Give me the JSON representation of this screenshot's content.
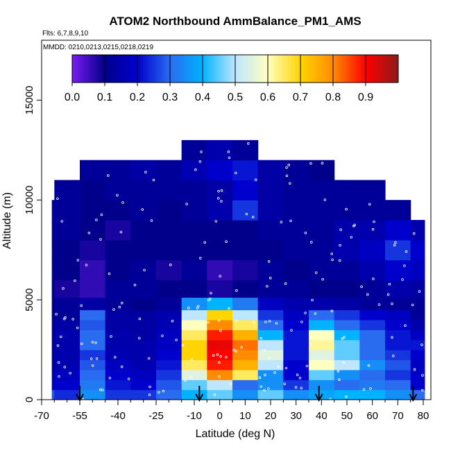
{
  "chart_data": {
    "type": "heatmap",
    "title": "ATOM2 Northbound AmmBalance_PM1_AMS",
    "notes": [
      "Flts: 6,7,8,9,10",
      "MMDD: 0210,0213,0215,0218,0219"
    ],
    "xlabel": "Latitude (deg N)",
    "ylabel": "Altitude (m)",
    "xlim": [
      -70,
      83
    ],
    "ylim": [
      0,
      18000
    ],
    "x_ticks": [
      -70,
      -55,
      -40,
      -25,
      -10,
      0,
      10,
      20,
      30,
      40,
      50,
      60,
      70,
      80
    ],
    "x_ticks_minor": [
      -65,
      -60,
      -50,
      -45,
      -35,
      -30,
      -20,
      -15,
      -5,
      5,
      15,
      25,
      35,
      45,
      55,
      65,
      75
    ],
    "y_ticks": [
      0,
      5000,
      10000,
      15000
    ],
    "colorbar": {
      "range": [
        0.0,
        1.0
      ],
      "ticks": [
        "0.0",
        "0.1",
        "0.2",
        "0.3",
        "0.4",
        "0.5",
        "0.6",
        "0.7",
        "0.8",
        "0.9"
      ],
      "colors": [
        "#7a1bf0",
        "#00008b",
        "#0000cd",
        "#2a6cf0",
        "#00b2ff",
        "#bfe6ff",
        "#ffffc0",
        "#ffd400",
        "#ff8c00",
        "#ff0000",
        "#8b1a1a"
      ]
    },
    "sounding_latitudes": [
      -55,
      -8,
      39,
      76
    ],
    "lat_columns": [
      -70,
      -60,
      -50,
      -40,
      -30,
      -20,
      -10,
      0,
      10,
      20,
      30,
      40,
      50,
      60,
      70,
      80
    ],
    "alt_levels_m": [
      250,
      750,
      1250,
      1750,
      2250,
      2750,
      3250,
      3750,
      4250,
      4750,
      5500,
      6500,
      7500,
      8500,
      9500,
      10500,
      11500,
      12500
    ],
    "grid_values": [
      [
        0.28,
        0.24,
        0.35,
        0.25,
        0.25,
        0.3,
        0.4,
        0.45,
        0.35,
        0.45,
        0.35,
        0.38,
        0.4,
        0.4,
        0.35,
        0.3
      ],
      [
        0.18,
        0.2,
        0.32,
        0.22,
        0.2,
        0.28,
        0.45,
        0.5,
        0.3,
        0.35,
        0.25,
        0.35,
        0.3,
        0.32,
        0.3,
        0.2
      ],
      [
        0.15,
        0.18,
        0.3,
        0.2,
        0.18,
        0.25,
        0.55,
        0.8,
        0.65,
        0.35,
        0.2,
        0.45,
        0.35,
        0.3,
        0.25,
        0.2
      ],
      [
        0.12,
        0.16,
        0.28,
        0.18,
        0.16,
        0.22,
        0.65,
        0.88,
        0.75,
        0.5,
        0.2,
        0.6,
        0.5,
        0.35,
        0.28,
        0.18
      ],
      [
        0.12,
        0.15,
        0.25,
        0.16,
        0.15,
        0.2,
        0.7,
        0.9,
        0.8,
        0.55,
        0.22,
        0.55,
        0.45,
        0.3,
        0.25,
        0.2
      ],
      [
        0.12,
        0.15,
        0.3,
        0.15,
        0.15,
        0.18,
        0.7,
        0.92,
        0.82,
        0.5,
        0.22,
        0.62,
        0.45,
        0.3,
        0.22,
        0.22
      ],
      [
        0.12,
        0.15,
        0.3,
        0.15,
        0.14,
        0.18,
        0.65,
        0.88,
        0.75,
        0.4,
        0.22,
        0.6,
        0.4,
        0.3,
        0.22,
        0.18
      ],
      [
        0.12,
        0.14,
        0.28,
        0.14,
        0.14,
        0.16,
        0.6,
        0.8,
        0.65,
        0.3,
        0.2,
        0.4,
        0.3,
        0.25,
        0.2,
        0.15
      ],
      [
        0.1,
        0.12,
        0.3,
        0.14,
        0.13,
        0.15,
        0.5,
        0.7,
        0.5,
        0.25,
        0.18,
        0.3,
        0.25,
        0.2,
        0.18,
        0.12
      ],
      [
        0.1,
        0.12,
        0.14,
        0.12,
        0.1,
        0.12,
        0.35,
        0.4,
        0.32,
        0.18,
        0.15,
        0.15,
        0.14,
        0.12,
        0.12,
        0.12
      ],
      [
        0.1,
        0.08,
        0.06,
        0.12,
        0.12,
        0.1,
        0.1,
        0.08,
        0.1,
        0.12,
        0.12,
        0.1,
        0.1,
        0.12,
        0.15,
        0.14
      ],
      [
        0.12,
        0.1,
        0.06,
        0.1,
        0.12,
        0.08,
        0.12,
        0.06,
        0.08,
        0.12,
        0.1,
        0.12,
        0.12,
        0.15,
        0.2,
        0.18
      ],
      [
        0.12,
        0.1,
        0.08,
        0.1,
        0.1,
        0.1,
        0.1,
        0.1,
        0.1,
        0.1,
        0.12,
        0.12,
        0.15,
        0.18,
        0.25,
        0.2
      ],
      [
        0.12,
        0.12,
        0.1,
        0.08,
        0.1,
        0.1,
        0.1,
        0.1,
        0.1,
        0.12,
        0.12,
        0.12,
        0.15,
        0.15,
        0.2,
        0.15
      ],
      [
        0.14,
        0.12,
        0.1,
        0.1,
        0.12,
        0.1,
        0.12,
        0.15,
        0.25,
        0.14,
        0.12,
        0.12,
        0.12,
        0.12,
        0.12,
        null
      ],
      [
        null,
        0.12,
        0.1,
        0.12,
        0.12,
        0.12,
        0.12,
        0.14,
        0.2,
        0.14,
        0.12,
        0.12,
        0.12,
        0.12,
        null,
        null
      ],
      [
        null,
        null,
        0.12,
        0.12,
        0.14,
        0.12,
        0.16,
        0.2,
        0.22,
        0.14,
        0.12,
        0.1,
        null,
        null,
        null,
        null
      ],
      [
        null,
        null,
        null,
        null,
        null,
        null,
        0.12,
        0.15,
        0.12,
        null,
        null,
        null,
        null,
        null,
        null,
        null
      ]
    ]
  }
}
